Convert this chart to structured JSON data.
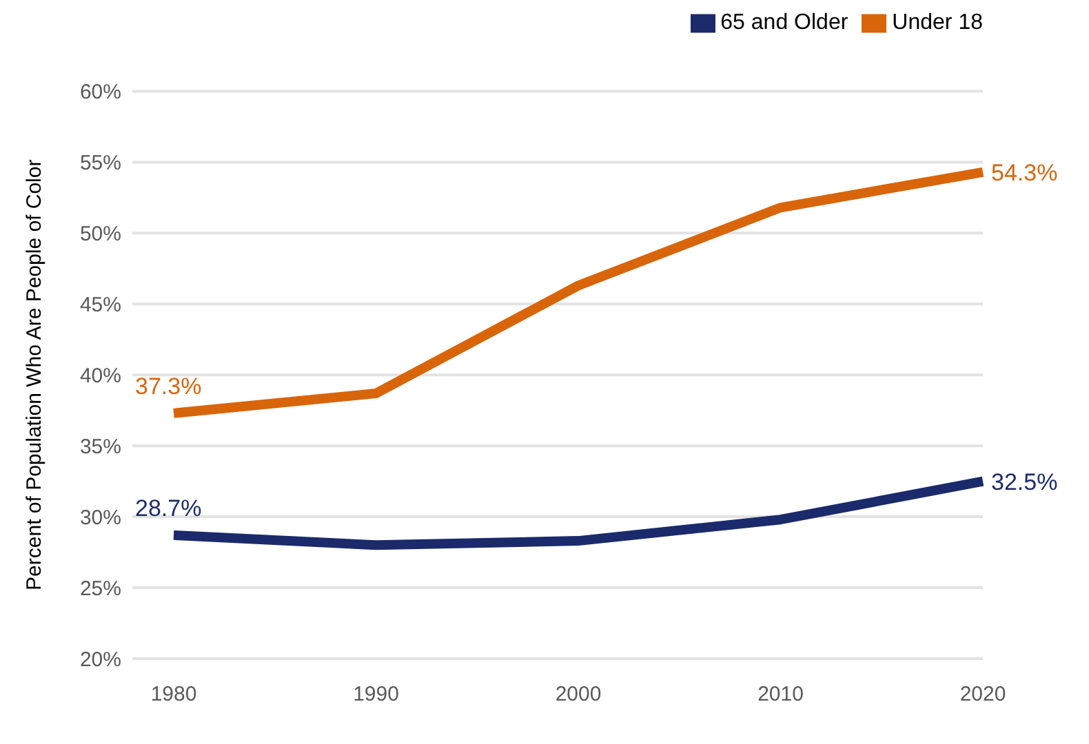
{
  "chart_data": {
    "type": "line",
    "ylabel": "Percent of Population Who Are People of Color",
    "categories": [
      "1980",
      "1990",
      "2000",
      "2010",
      "2020"
    ],
    "series": [
      {
        "name": "Under 18",
        "color": "#d9650b",
        "values": [
          37.3,
          38.7,
          46.3,
          51.8,
          54.3
        ],
        "value_labels": [
          "37.3%",
          null,
          null,
          null,
          "54.3%"
        ]
      },
      {
        "name": "65 and Older",
        "color": "#1b2a6b",
        "values": [
          28.7,
          28.0,
          28.3,
          29.8,
          32.5
        ],
        "value_labels": [
          "28.7%",
          null,
          null,
          null,
          "32.5%"
        ]
      }
    ],
    "ylim": [
      20,
      60
    ],
    "yticks": [
      {
        "value": 20,
        "label": "20%"
      },
      {
        "value": 25,
        "label": "25%"
      },
      {
        "value": 30,
        "label": "30%"
      },
      {
        "value": 35,
        "label": "35%"
      },
      {
        "value": 40,
        "label": "40%"
      },
      {
        "value": 45,
        "label": "45%"
      },
      {
        "value": 50,
        "label": "50%"
      },
      {
        "value": 55,
        "label": "55%"
      },
      {
        "value": 60,
        "label": "60%"
      }
    ],
    "grid": "y",
    "legend": "top right",
    "marker": "none",
    "line_style": "solid"
  }
}
